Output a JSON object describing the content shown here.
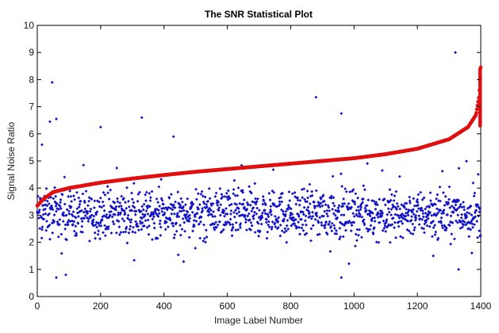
{
  "chart_data": {
    "type": "scatter",
    "title": "The SNR Statistical Plot",
    "xlabel": "Image Label Number",
    "ylabel": "Signal Noise Ratio",
    "xlim": [
      0,
      1400
    ],
    "ylim": [
      0,
      10
    ],
    "xticks": [
      "0",
      "200",
      "400",
      "600",
      "800",
      "1000",
      "1200",
      "1400"
    ],
    "yticks": [
      "0",
      "1",
      "2",
      "3",
      "4",
      "5",
      "6",
      "7",
      "8",
      "9",
      "10"
    ],
    "grid": false,
    "series": [
      {
        "marker": "blue-dots",
        "color": "#1010c8",
        "description_values": {
          "n_points": 1400,
          "bulk_range": [
            1.8,
            4.3
          ],
          "outliers": [
            {
              "x": 47,
              "y": 7.9
            },
            {
              "x": 60,
              "y": 6.55
            },
            {
              "x": 40,
              "y": 6.45
            },
            {
              "x": 880,
              "y": 7.35
            },
            {
              "x": 960,
              "y": 6.75
            },
            {
              "x": 1320,
              "y": 9.0
            },
            {
              "x": 330,
              "y": 6.6
            },
            {
              "x": 200,
              "y": 6.25
            },
            {
              "x": 60,
              "y": 0.7
            },
            {
              "x": 960,
              "y": 0.7
            },
            {
              "x": 90,
              "y": 0.8
            },
            {
              "x": 15,
              "y": 5.6
            },
            {
              "x": 430,
              "y": 5.9
            },
            {
              "x": 1330,
              "y": 1.0
            },
            {
              "x": 1250,
              "y": 1.5
            }
          ]
        }
      },
      {
        "marker": "red-sorted-curve",
        "color": "#e01010",
        "points": [
          {
            "x": 0,
            "y": 3.35
          },
          {
            "x": 20,
            "y": 3.6
          },
          {
            "x": 50,
            "y": 3.85
          },
          {
            "x": 100,
            "y": 4.0
          },
          {
            "x": 200,
            "y": 4.2
          },
          {
            "x": 300,
            "y": 4.35
          },
          {
            "x": 400,
            "y": 4.48
          },
          {
            "x": 500,
            "y": 4.6
          },
          {
            "x": 600,
            "y": 4.7
          },
          {
            "x": 700,
            "y": 4.8
          },
          {
            "x": 800,
            "y": 4.9
          },
          {
            "x": 900,
            "y": 5.0
          },
          {
            "x": 1000,
            "y": 5.1
          },
          {
            "x": 1100,
            "y": 5.25
          },
          {
            "x": 1200,
            "y": 5.45
          },
          {
            "x": 1300,
            "y": 5.8
          },
          {
            "x": 1360,
            "y": 6.25
          },
          {
            "x": 1385,
            "y": 6.7
          },
          {
            "x": 1395,
            "y": 7.4
          },
          {
            "x": 1400,
            "y": 8.45
          }
        ]
      }
    ]
  }
}
